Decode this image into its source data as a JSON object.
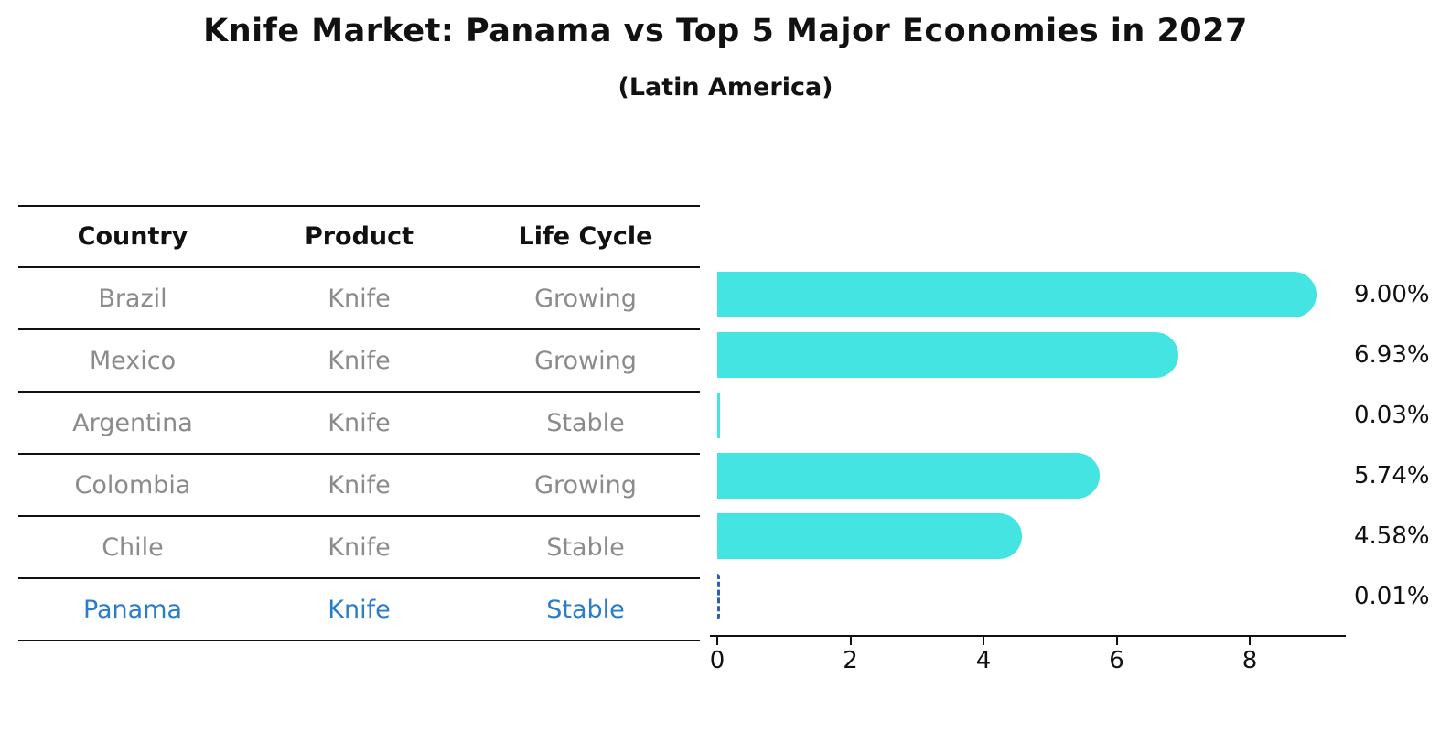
{
  "title": {
    "text": "Knife Market: Panama vs Top 5 Major Economies in 2027",
    "subtitle": "(Latin America)"
  },
  "table": {
    "headers": [
      "Country",
      "Product",
      "Life Cycle"
    ],
    "rows": [
      {
        "country": "Brazil",
        "product": "Knife",
        "life_cycle": "Growing",
        "highlight": false
      },
      {
        "country": "Mexico",
        "product": "Knife",
        "life_cycle": "Growing",
        "highlight": false
      },
      {
        "country": "Argentina",
        "product": "Knife",
        "life_cycle": "Stable",
        "highlight": false
      },
      {
        "country": "Colombia",
        "product": "Knife",
        "life_cycle": "Growing",
        "highlight": false
      },
      {
        "country": "Chile",
        "product": "Knife",
        "life_cycle": "Stable",
        "highlight": false
      },
      {
        "country": "Panama",
        "product": "Knife",
        "life_cycle": "Stable",
        "highlight": true
      }
    ]
  },
  "chart_data": {
    "type": "bar",
    "orientation": "horizontal",
    "title": "Knife Market: Panama vs Top 5 Major Economies in 2027",
    "subtitle": "(Latin America)",
    "categories": [
      "Brazil",
      "Mexico",
      "Argentina",
      "Colombia",
      "Chile",
      "Panama"
    ],
    "values": [
      9.0,
      6.93,
      0.03,
      5.74,
      4.58,
      0.01
    ],
    "value_labels": [
      "9.00%",
      "6.93%",
      "0.03%",
      "5.74%",
      "4.58%",
      "0.01%"
    ],
    "unit": "%",
    "xlabel": "",
    "ylabel": "",
    "xlim": [
      0,
      9.4
    ],
    "x_ticks": [
      0,
      2,
      4,
      6,
      8
    ],
    "grid": false,
    "legend": "none",
    "highlight_index": 5,
    "highlight_style": "dashed-blue-outline"
  },
  "colors": {
    "bar": "#43e4e1",
    "highlight_text": "#2a7ccc",
    "highlight_dash": "#2a62b0",
    "table_text": "#8b8b8b",
    "header_text": "#111111",
    "axis": "#111111",
    "background": "#ffffff"
  }
}
